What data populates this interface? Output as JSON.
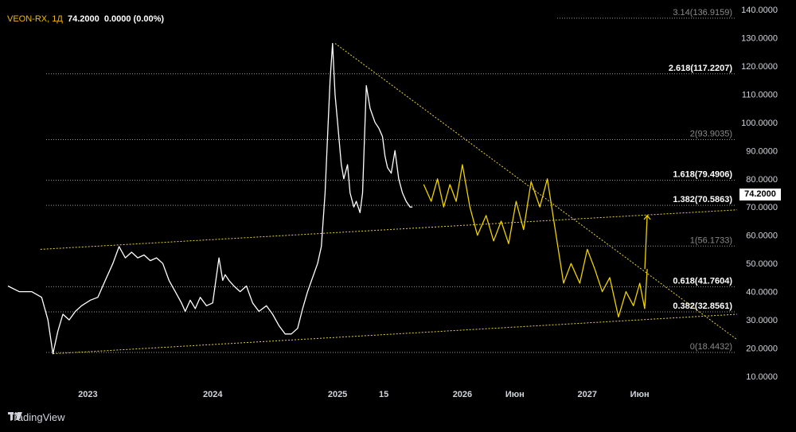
{
  "legend": {
    "symbol": "VEON-RX",
    "interval": "1Д",
    "last": "74.2000",
    "change": "0.0000 (0.00%)"
  },
  "brand": {
    "name": "TradingView",
    "icon": "tradingview-logo-icon"
  },
  "price_label": "74.2000",
  "colors": {
    "background": "#000000",
    "price": "#ffffff",
    "projection": "#f0d200",
    "trend": "#e6d23c",
    "fib": "#9a9a9a"
  },
  "chart_data": {
    "type": "line",
    "title": "",
    "xlabel": "",
    "ylabel": "",
    "y_ticks": [
      "10.0000",
      "20.0000",
      "30.0000",
      "40.0000",
      "50.0000",
      "60.0000",
      "70.0000",
      "80.0000",
      "90.0000",
      "100.0000",
      "110.0000",
      "120.0000",
      "130.0000",
      "140.0000"
    ],
    "y_tick_values": [
      10,
      20,
      30,
      40,
      50,
      60,
      70,
      80,
      90,
      100,
      110,
      120,
      130,
      140
    ],
    "ylim": [
      6.5,
      142.5
    ],
    "x_ticks": [
      {
        "label": "2023",
        "t": 2023.0
      },
      {
        "label": "2024",
        "t": 2024.0
      },
      {
        "label": "2025",
        "t": 2025.0
      },
      {
        "label": "15",
        "t": 2025.37
      },
      {
        "label": "2026",
        "t": 2026.0
      },
      {
        "label": "Июн",
        "t": 2026.42
      },
      {
        "label": "2027",
        "t": 2027.0
      },
      {
        "label": "Июн",
        "t": 2027.42
      }
    ],
    "xlim": [
      2022.36,
      2028.2
    ],
    "fib_levels": [
      {
        "label": "3.14(136.9159)",
        "value": 136.9159,
        "bold": false
      },
      {
        "label": "2.618(117.2207)",
        "value": 117.2207,
        "bold": true
      },
      {
        "label": "2(93.9035)",
        "value": 93.9035,
        "bold": false
      },
      {
        "label": "1.618(79.4906)",
        "value": 79.4906,
        "bold": true
      },
      {
        "label": "1.382(70.5863)",
        "value": 70.5863,
        "bold": true
      },
      {
        "label": "1(56.1733)",
        "value": 56.1733,
        "bold": false
      },
      {
        "label": "0.618(41.7604)",
        "value": 41.7604,
        "bold": true
      },
      {
        "label": "0.382(32.8561)",
        "value": 32.8561,
        "bold": true
      },
      {
        "label": "0(18.4432)",
        "value": 18.4432,
        "bold": false
      }
    ],
    "series": [
      {
        "x": [
          2022.36,
          2022.45,
          2022.55,
          2022.63,
          2022.68,
          2022.72,
          2022.76,
          2022.8,
          2022.85,
          2022.9,
          2022.95,
          2023.02,
          2023.08,
          2023.14,
          2023.2,
          2023.25,
          2023.3,
          2023.35,
          2023.4,
          2023.45,
          2023.5,
          2023.55,
          2023.6,
          2023.65,
          2023.7,
          2023.75,
          2023.78,
          2023.82,
          2023.86,
          2023.9,
          2023.95,
          2024.0,
          2024.05,
          2024.08,
          2024.1,
          2024.13,
          2024.17,
          2024.22,
          2024.27,
          2024.32,
          2024.37,
          2024.43,
          2024.48,
          2024.53,
          2024.58,
          2024.63,
          2024.68,
          2024.72,
          2024.76,
          2024.8,
          2024.84,
          2024.87,
          2024.9,
          2024.92,
          2024.94,
          2024.96,
          2024.98,
          2025.0,
          2025.02,
          2025.03,
          2025.05,
          2025.08,
          2025.1,
          2025.13,
          2025.15,
          2025.18,
          2025.2,
          2025.23,
          2025.26,
          2025.3,
          2025.33,
          2025.36,
          2025.38,
          2025.4,
          2025.43,
          2025.46,
          2025.49,
          2025.52,
          2025.55,
          2025.58,
          2025.6
        ],
        "y": [
          42,
          40,
          40,
          38,
          30,
          18,
          26,
          32,
          30,
          33,
          35,
          37,
          38,
          44,
          50,
          56,
          52,
          54,
          52,
          53,
          51,
          52,
          50,
          44,
          40,
          36,
          33,
          37,
          34,
          38,
          35,
          36,
          52,
          44,
          46,
          44,
          42,
          40,
          42,
          36,
          33,
          35,
          32,
          28,
          25,
          25,
          27,
          34,
          40,
          45,
          50,
          56,
          75,
          95,
          115,
          128,
          110,
          100,
          90,
          85,
          80,
          85,
          75,
          70,
          72,
          68,
          75,
          113,
          105,
          100,
          98,
          95,
          88,
          84,
          82,
          90,
          80,
          75,
          72,
          70,
          70
        ]
      },
      {
        "x": [
          2025.69,
          2025.75,
          2025.8,
          2025.85,
          2025.9,
          2025.95,
          2026.0,
          2026.06,
          2026.12,
          2026.19,
          2026.25,
          2026.31,
          2026.37,
          2026.43,
          2026.49,
          2026.55,
          2026.62,
          2026.68,
          2026.75,
          2026.81,
          2026.87,
          2026.94,
          2027.0,
          2027.06,
          2027.12,
          2027.18,
          2027.25,
          2027.31,
          2027.37,
          2027.42,
          2027.46,
          2027.48
        ],
        "y": [
          78,
          72,
          80,
          70,
          78,
          72,
          85,
          70,
          60,
          67,
          58,
          65,
          57,
          72,
          62,
          79,
          70,
          80,
          60,
          43,
          50,
          43,
          55,
          48,
          40,
          45,
          31,
          40,
          35,
          43,
          34,
          48
        ]
      }
    ],
    "trendlines": [
      {
        "name": "upper",
        "x": [
          2022.62,
          2028.2
        ],
        "y": [
          55,
          69
        ]
      },
      {
        "name": "lower",
        "x": [
          2022.72,
          2028.2
        ],
        "y": [
          18,
          32
        ]
      },
      {
        "name": "descending",
        "x": [
          2024.98,
          2028.2
        ],
        "y": [
          128,
          23
        ]
      }
    ]
  }
}
